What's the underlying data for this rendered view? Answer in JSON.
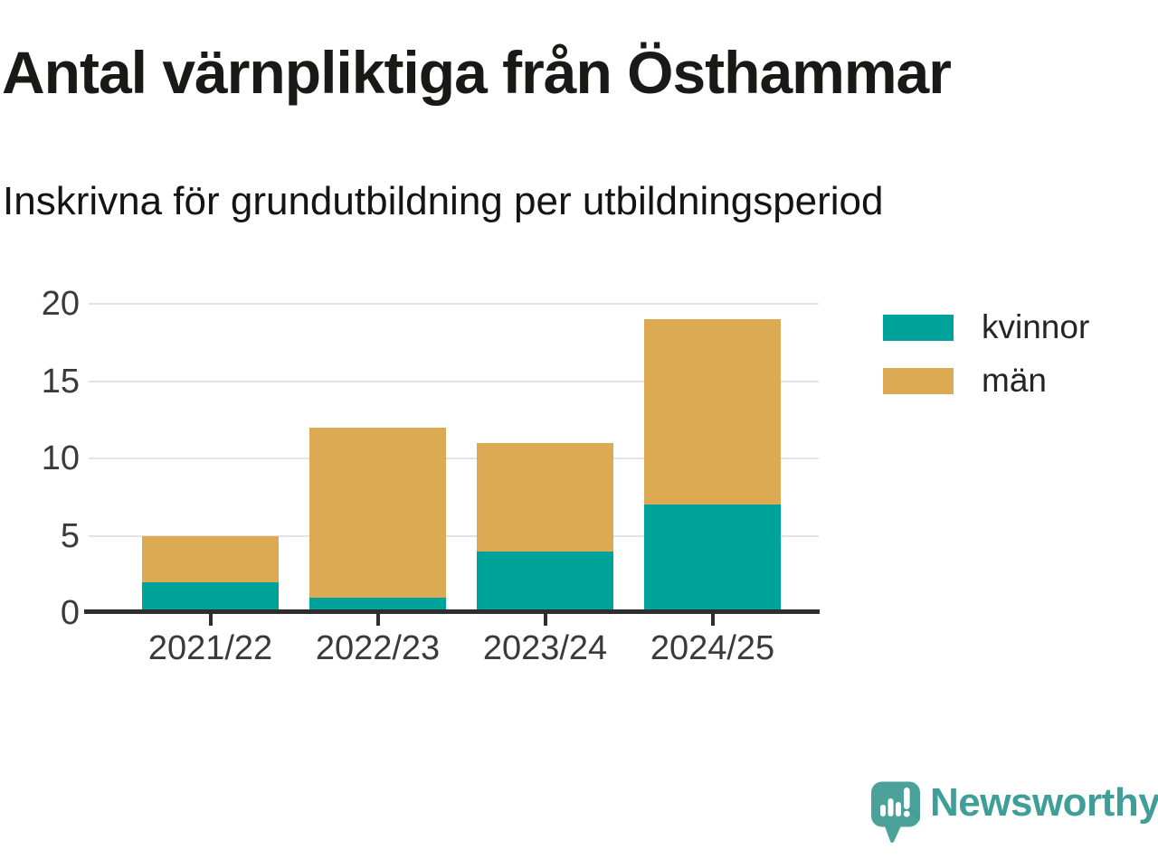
{
  "header": {
    "title": "Antal värnpliktiga från Östhammar",
    "subtitle": "Inskrivna för grundutbildning per utbildningsperiod"
  },
  "chart_data": {
    "type": "bar",
    "stacked": true,
    "title": "Antal värnpliktiga från Östhammar",
    "subtitle": "Inskrivna för grundutbildning per utbildningsperiod",
    "categories": [
      "2021/22",
      "2022/23",
      "2023/24",
      "2024/25"
    ],
    "series": [
      {
        "name": "kvinnor",
        "color": "#00a39a",
        "values": [
          2,
          1,
          4,
          7
        ]
      },
      {
        "name": "män",
        "color": "#dcaa52",
        "values": [
          3,
          11,
          7,
          12
        ]
      }
    ],
    "ylim": [
      0,
      20
    ],
    "yticks": [
      0,
      5,
      10,
      15,
      20
    ],
    "grid": "horizontal",
    "legend_position": "upper-right"
  },
  "branding": {
    "logo_text": "Newsworthy",
    "logo_icon": "newsworthy-speech-bubble-bar-chart-icon",
    "brand_color": "#3f9f98"
  },
  "colors": {
    "axis": "#2e2e2e",
    "gridline": "#e3e3e3",
    "kvinnor": "#00a39a",
    "man": "#dcaa52"
  }
}
